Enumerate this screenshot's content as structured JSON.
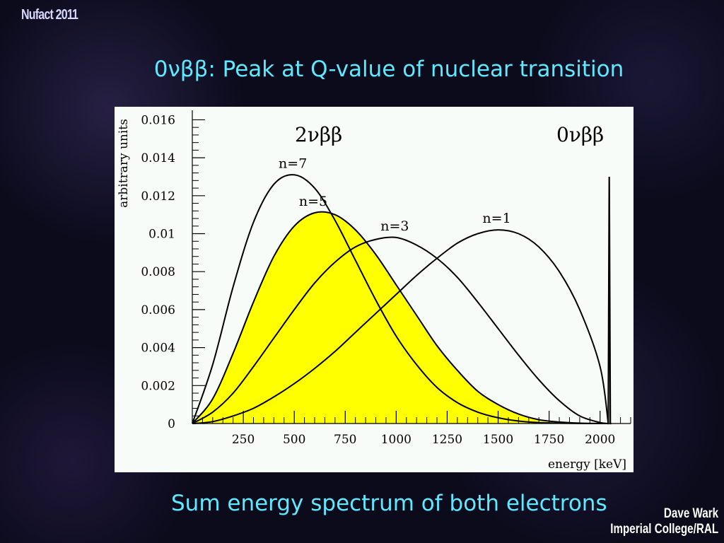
{
  "slide": {
    "conference": "Nufact 2011",
    "title": "0νββ: Peak at Q-value of nuclear transition",
    "subtitle": "Sum energy spectrum of both electrons",
    "author_line1": "Dave Wark",
    "author_line2": "Imperial College/RAL"
  },
  "chart_data": {
    "type": "line",
    "xlabel": "energy [keV]",
    "ylabel": "arbitrary units",
    "xlim": [
      0,
      2150
    ],
    "ylim": [
      0,
      0.0165
    ],
    "xticks": [
      250,
      500,
      750,
      1000,
      1250,
      1500,
      1750,
      2000
    ],
    "yticks": [
      0,
      0.002,
      0.004,
      0.006,
      0.008,
      0.01,
      0.012,
      0.014,
      0.016
    ],
    "ytick_labels": [
      "0",
      "0.002",
      "0.004",
      "0.006",
      "0.008",
      "0.01",
      "0.012",
      "0.014",
      "0.016"
    ],
    "annotations": [
      "2νββ",
      "0νββ"
    ],
    "fill_color": "#ffff00",
    "series": [
      {
        "name": "n=7",
        "x": [
          0,
          100,
          200,
          300,
          400,
          500,
          600,
          700,
          800,
          900,
          1000,
          1100,
          1200,
          1300,
          1400,
          1500,
          1600,
          1700,
          1800,
          1900,
          2000,
          2040
        ],
        "y": [
          0,
          0.0031,
          0.0072,
          0.0106,
          0.0126,
          0.0131,
          0.0124,
          0.0107,
          0.0086,
          0.0065,
          0.0046,
          0.0031,
          0.0019,
          0.0011,
          0.0006,
          0.0003,
          0.00013,
          5e-05,
          2e-05,
          5e-06,
          1e-06,
          0
        ]
      },
      {
        "name": "n=5",
        "filled": true,
        "x": [
          0,
          100,
          200,
          300,
          400,
          500,
          600,
          700,
          800,
          900,
          1000,
          1100,
          1200,
          1300,
          1400,
          1500,
          1600,
          1700,
          1800,
          1900,
          2000,
          2040
        ],
        "y": [
          0,
          0.0013,
          0.0037,
          0.0064,
          0.0088,
          0.0104,
          0.0111,
          0.011,
          0.0102,
          0.0089,
          0.0073,
          0.0057,
          0.0041,
          0.0028,
          0.0017,
          0.001,
          0.0005,
          0.0002,
          8e-05,
          2e-05,
          3e-06,
          0
        ]
      },
      {
        "name": "n=3",
        "x": [
          0,
          100,
          200,
          300,
          400,
          500,
          600,
          700,
          800,
          900,
          1000,
          1100,
          1200,
          1300,
          1400,
          1500,
          1600,
          1700,
          1800,
          1900,
          2000,
          2040
        ],
        "y": [
          0,
          0.0006,
          0.0016,
          0.003,
          0.0045,
          0.006,
          0.0074,
          0.0085,
          0.0093,
          0.0097,
          0.0098,
          0.0094,
          0.0087,
          0.0077,
          0.0064,
          0.005,
          0.0036,
          0.0023,
          0.0012,
          0.0004,
          5e-05,
          0
        ]
      },
      {
        "name": "n=1",
        "x": [
          0,
          100,
          200,
          300,
          400,
          500,
          600,
          700,
          800,
          900,
          1000,
          1100,
          1200,
          1300,
          1400,
          1500,
          1600,
          1700,
          1800,
          1900,
          2000,
          2040
        ],
        "y": [
          0,
          0.0001,
          0.0004,
          0.0008,
          0.0014,
          0.0021,
          0.0029,
          0.0038,
          0.0048,
          0.0058,
          0.0068,
          0.0078,
          0.0087,
          0.0095,
          0.01,
          0.0102,
          0.01,
          0.0093,
          0.008,
          0.006,
          0.003,
          0
        ]
      },
      {
        "name": "0νββ",
        "x": [
          2035,
          2040,
          2045,
          2050,
          2055
        ],
        "y": [
          0,
          0,
          0.013,
          0,
          0
        ]
      }
    ]
  }
}
